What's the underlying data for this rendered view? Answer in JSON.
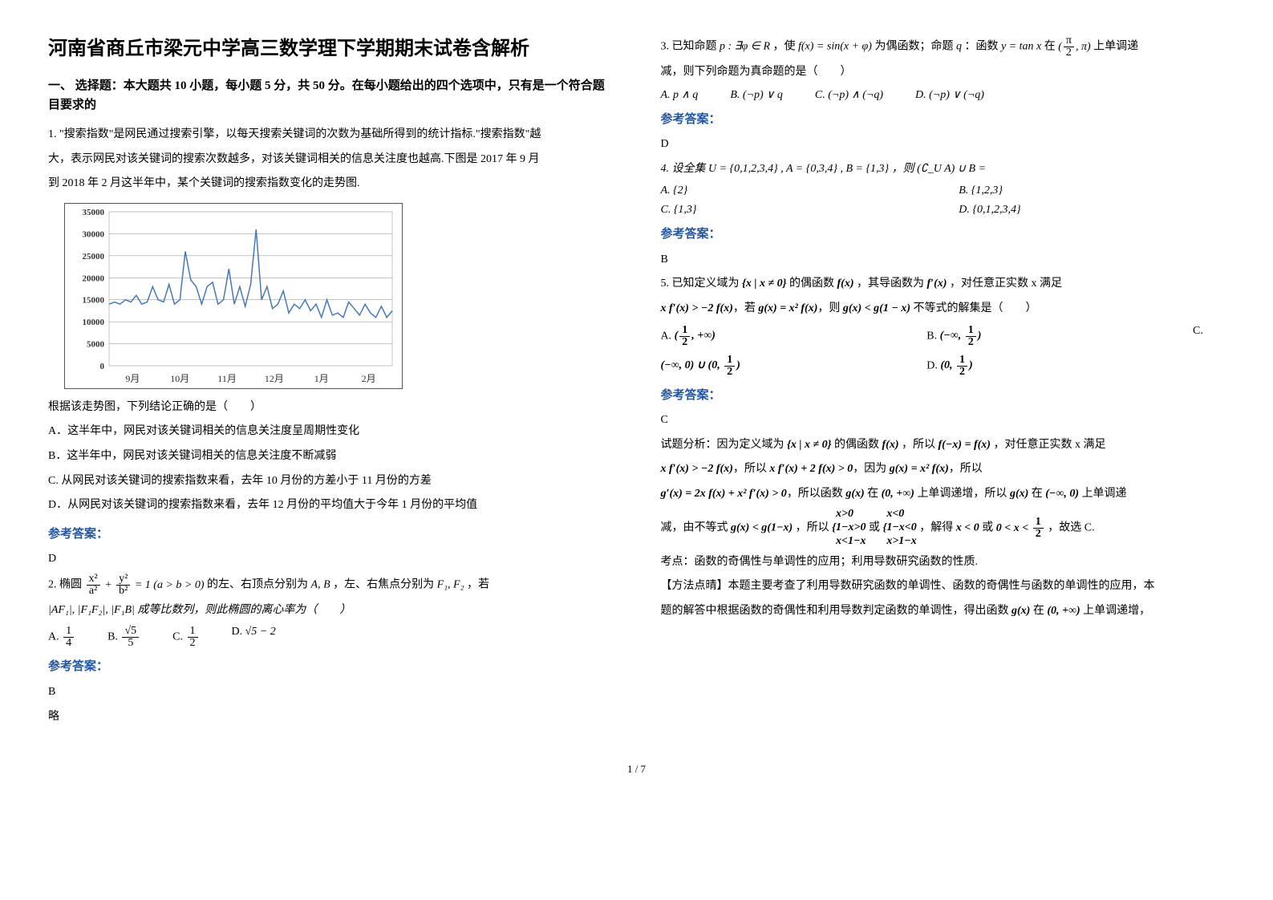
{
  "title": "河南省商丘市梁元中学高三数学理下学期期末试卷含解析",
  "section1": "一、 选择题：本大题共 10 小题，每小题 5 分，共 50 分。在每小题给出的四个选项中，只有是一个符合题目要求的",
  "q1": {
    "stem1": "1. \"搜索指数\"是网民通过搜索引擎，以每天搜索关键词的次数为基础所得到的统计指标.\"搜索指数\"越",
    "stem2": "大，表示网民对该关键词的搜索次数越多，对该关键词相关的信息关注度也越高.下图是 2017 年 9 月",
    "stem3": "到 2018 年 2 月这半年中，某个关键词的搜索指数变化的走势图.",
    "post": "根据该走势图，下列结论正确的是（　　）",
    "A": "A．这半年中，网民对该关键词相关的信息关注度呈周期性变化",
    "B": "B．这半年中，网民对该关键词相关的信息关注度不断减弱",
    "C": "C. 从网民对该关键词的搜索指数来看，去年 10 月份的方差小于 11 月份的方差",
    "D": "D．从网民对该关键词的搜索指数来看，去年 12 月份的平均值大于今年 1 月份的平均值",
    "ans_label": "参考答案：",
    "ans": "D"
  },
  "chart": {
    "ylabels": [
      "35000",
      "30000",
      "25000",
      "20000",
      "15000",
      "10000",
      "5000",
      "0"
    ],
    "xlabels": [
      "9月",
      "10月",
      "11月",
      "12月",
      "1月",
      "2月"
    ],
    "line_color": "#4579b8",
    "grid_color": "#888888",
    "text_color": "#333333",
    "y_max": 35000,
    "series": [
      14000,
      14500,
      14000,
      15000,
      14500,
      16000,
      14000,
      14500,
      18000,
      15000,
      14500,
      18500,
      14000,
      15000,
      26000,
      19500,
      18000,
      14000,
      18000,
      19000,
      14000,
      15000,
      22000,
      14000,
      18000,
      13500,
      18500,
      31000,
      15000,
      18000,
      13000,
      14000,
      17000,
      12000,
      14000,
      13000,
      15000,
      12500,
      14000,
      11000,
      15000,
      11500,
      12000,
      11000,
      14500,
      13000,
      11500,
      14000,
      12000,
      11000,
      13500,
      11000,
      12500
    ]
  },
  "q2": {
    "stem_pre": "2. 椭圆",
    "stem_post": " 的左、右顶点分别为 ",
    "ab": "A, B",
    "stem_post2": "，左、右焦点分别为 ",
    "f12": "F₁, F₂",
    "stem_post3": "，若",
    "cond": "|AF₁|, |F₁F₂|, |F₁B| 成等比数列，则此椭圆的离心率为（　　）",
    "optA_label": "A.",
    "optB_label": "B.",
    "optC_label": "C.",
    "optD_label": "D.",
    "optD": "√5 − 2",
    "ans_label": "参考答案：",
    "ans": "B",
    "note": "略"
  },
  "q3": {
    "stem_pre": "3. 已知命题 ",
    "p": "p : ∃φ ∈ R",
    "stem_mid1": "，使 ",
    "fx": "f(x) = sin(x + φ)",
    "stem_mid2": " 为偶函数；命题 ",
    "q": "q",
    "stem_mid3": "：函数 ",
    "yx": "y = tan x",
    "stem_mid4": " 在 ",
    "stem_end": " 上单调递",
    "line2": "减，则下列命题为真命题的是（　　）",
    "optA": "A. p ∧ q",
    "optB": "B. (¬p) ∨ q",
    "optC": "C. (¬p) ∧ (¬q)",
    "optD": "D. (¬p) ∨ (¬q)",
    "ans_label": "参考答案：",
    "ans": "D"
  },
  "q4": {
    "stem": "4. 设全集 U = {0,1,2,3,4} , A = {0,3,4} , B = {1,3} ，则 (∁_U A) ∪ B =",
    "optA": "A.  {2}",
    "optB": "B.  {1,2,3}",
    "optC": "C.  {1,3}",
    "optD": "D.  {0,1,2,3,4}",
    "ans_label": "参考答案：",
    "ans": "B"
  },
  "q5": {
    "stem1_pre": "5. 已知定义域为 ",
    "set": "{x | x ≠ 0}",
    "stem1_mid": " 的偶函数 ",
    "fx": "f(x)",
    "stem1_mid2": "，其导函数为 ",
    "fpx": "f′(x)",
    "stem1_end": "，对任意正实数 x 满足",
    "line2_a": "x f′(x) > −2 f(x)",
    "line2_mid": "，若 ",
    "line2_b": "g(x) = x² f(x)",
    "line2_mid2": "，则 ",
    "line2_c": "g(x) < g(1 − x)",
    "line2_end": " 不等式的解集是（　　）",
    "optA_label": "A.",
    "optB_label": "B.",
    "optC_label": "C.",
    "optD_label": "D.",
    "ans_label": "参考答案：",
    "ans": "C",
    "expl1_pre": "试题分析：因为定义域为 ",
    "expl1_set": "{x | x ≠ 0}",
    "expl1_mid": " 的偶函数 ",
    "expl1_fx": "f(x)",
    "expl1_mid2": "，所以 ",
    "expl1_fmx": "f(−x) = f(x)",
    "expl1_end": "，对任意正实数 x 满足",
    "expl2_a": "x f′(x) > −2 f(x)",
    "expl2_mid": "，所以 ",
    "expl2_b": "x f′(x) + 2 f(x) > 0",
    "expl2_mid2": "，因为 ",
    "expl2_c": "g(x) = x² f(x)",
    "expl2_end": "，所以",
    "expl3_a": "g′(x) = 2x f(x) + x² f′(x) > 0",
    "expl3_mid": "，所以函数 ",
    "expl3_gx": "g(x)",
    "expl3_mid2": " 在 ",
    "expl3_int1": "(0, +∞)",
    "expl3_mid3": " 上单调递增，所以 ",
    "expl3_gx2": "g(x)",
    "expl3_mid4": " 在 ",
    "expl3_int2": "(−∞, 0)",
    "expl3_end": " 上单调递",
    "expl4_pre": "减，由不等式 ",
    "expl4_a": "g(x) < g(1−x)",
    "expl4_mid": "，所以 ",
    "expl4_mid2": " 或 ",
    "expl4_mid3": "，解得 ",
    "expl4_r1": "x < 0",
    "expl4_mid4": " 或 ",
    "expl4_end": "，故选 C.",
    "kd": "考点：函数的奇偶性与单调性的应用；利用导数研究函数的性质.",
    "method1": "【方法点晴】本题主要考查了利用导数研究函数的单调性、函数的奇偶性与函数的单调性的应用，本",
    "method2_pre": "题的解答中根据函数的奇偶性和利用导数判定函数的单调性，得出函数 ",
    "method2_gx": "g(x)",
    "method2_mid": " 在 ",
    "method2_int": "(0, +∞)",
    "method2_end": " 上单调递增，"
  },
  "footer": "1 / 7"
}
